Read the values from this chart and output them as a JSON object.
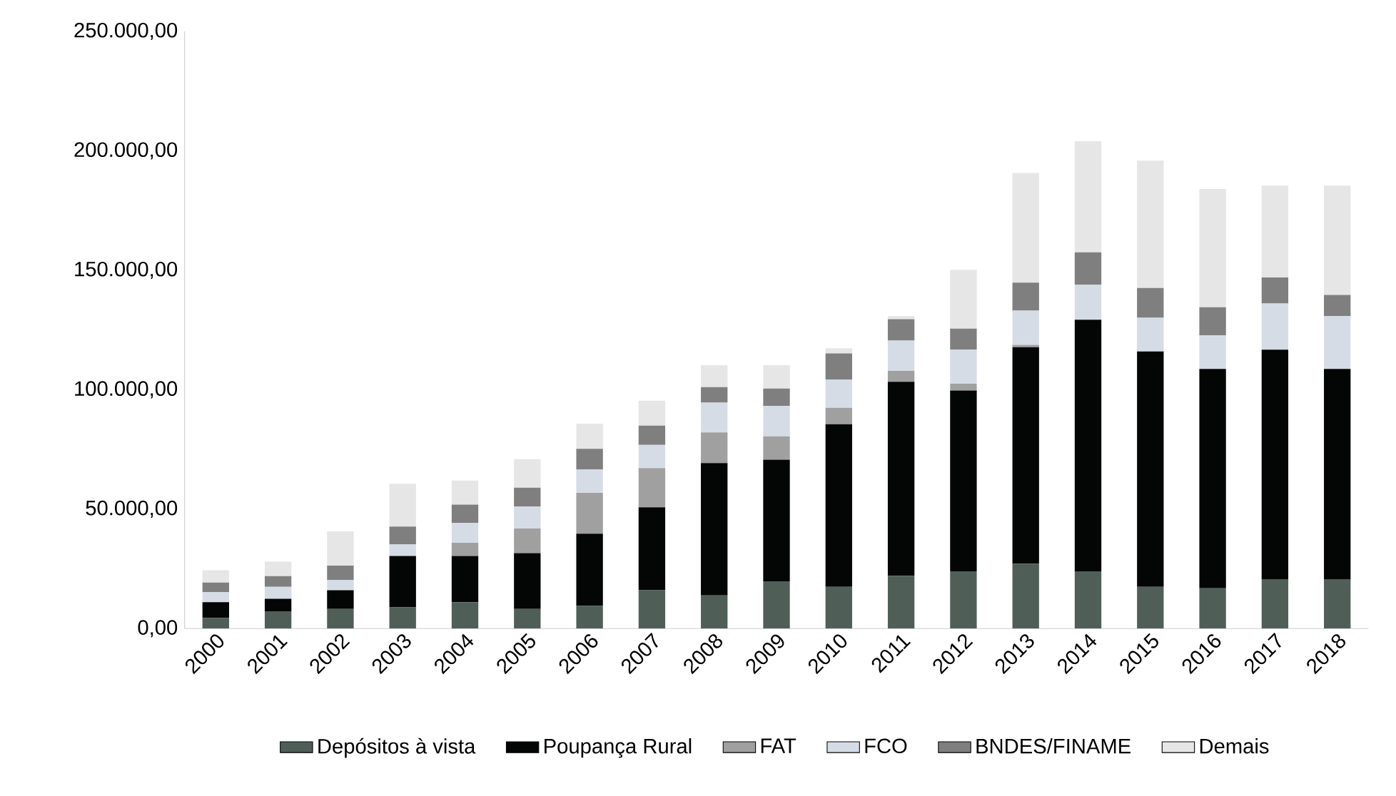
{
  "chart_data": {
    "type": "bar",
    "stacked": true,
    "categories": [
      "2000",
      "2001",
      "2002",
      "2003",
      "2004",
      "2005",
      "2006",
      "2007",
      "2008",
      "2009",
      "2010",
      "2011",
      "2012",
      "2013",
      "2014",
      "2015",
      "2016",
      "2017",
      "2018"
    ],
    "series": [
      {
        "name": "Depósitos à vista",
        "color": "#4f5f58",
        "values": [
          4400,
          7300,
          8200,
          8900,
          11100,
          8200,
          9500,
          16100,
          13900,
          19800,
          17500,
          22100,
          24000,
          27200,
          24000,
          17500,
          16900,
          20700,
          20700
        ]
      },
      {
        "name": "Poupança Rural",
        "color": "#030605",
        "values": [
          6700,
          5200,
          7900,
          21500,
          19300,
          23400,
          30200,
          34700,
          55400,
          50900,
          68100,
          81200,
          75700,
          90600,
          105300,
          98500,
          91800,
          96100,
          88000
        ]
      },
      {
        "name": "FAT",
        "color": "#a0a0a0",
        "values": [
          0,
          0,
          0,
          0,
          5500,
          10300,
          17100,
          16400,
          12800,
          9800,
          6800,
          4600,
          2800,
          1000,
          0,
          0,
          0,
          0,
          0
        ]
      },
      {
        "name": "FCO",
        "color": "#d6dce5",
        "values": [
          4200,
          5000,
          4300,
          4900,
          8400,
          9200,
          9800,
          9700,
          12500,
          12700,
          11900,
          12700,
          14300,
          14300,
          14700,
          14100,
          14100,
          19300,
          22200
        ]
      },
      {
        "name": "BNDES/FINAME",
        "color": "#7f7f7f",
        "values": [
          4000,
          4500,
          6000,
          7400,
          7600,
          7900,
          8700,
          8100,
          6500,
          7300,
          10900,
          8900,
          8800,
          11700,
          13500,
          12500,
          11700,
          10900,
          8800
        ]
      },
      {
        "name": "Demais",
        "color": "#e7e6e6",
        "values": [
          5100,
          6000,
          14300,
          17900,
          10100,
          11900,
          10500,
          10400,
          9200,
          9800,
          2200,
          1400,
          24600,
          45900,
          46500,
          53300,
          49500,
          38400,
          45700
        ]
      }
    ],
    "ylim": [
      0,
      250000
    ],
    "yticks": [
      {
        "value": 0,
        "label": "0,00"
      },
      {
        "value": 50000,
        "label": "50.000,00"
      },
      {
        "value": 100000,
        "label": "100.000,00"
      },
      {
        "value": 150000,
        "label": "150.000,00"
      },
      {
        "value": 200000,
        "label": "200.000,00"
      },
      {
        "value": 250000,
        "label": "250.000,00"
      }
    ],
    "legend": "bottom"
  }
}
